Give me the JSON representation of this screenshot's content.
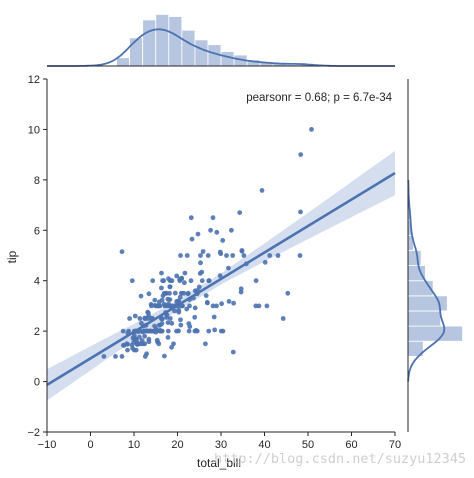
{
  "chart_data": {
    "type": "scatter",
    "xlabel": "total_bill",
    "ylabel": "tip",
    "xlim": [
      -10,
      70
    ],
    "ylim": [
      -2,
      12
    ],
    "xticks": [
      "−10",
      "0",
      "10",
      "20",
      "30",
      "40",
      "50",
      "60",
      "70"
    ],
    "xtick_values": [
      -10,
      0,
      10,
      20,
      30,
      40,
      50,
      60,
      70
    ],
    "yticks": [
      "−2",
      "0",
      "2",
      "4",
      "6",
      "8",
      "10",
      "12"
    ],
    "ytick_values": [
      -2,
      0,
      2,
      4,
      6,
      8,
      10,
      12
    ],
    "annotation": "pearsonr = 0.68; p = 6.7e-34",
    "grid": false,
    "color": "#4c72b0",
    "ci_color": "#c6d3ea",
    "hist_color": "#a9bcdc",
    "regression": {
      "slope": 0.105,
      "intercept": 0.92,
      "ci_x": [
        -10,
        0,
        10,
        20,
        30,
        40,
        50,
        60,
        70
      ],
      "ci_halfwidth": [
        0.62,
        0.48,
        0.32,
        0.2,
        0.22,
        0.36,
        0.52,
        0.7,
        0.88
      ]
    },
    "scatter": [
      [
        16.99,
        1.01
      ],
      [
        10.34,
        1.66
      ],
      [
        21.01,
        3.5
      ],
      [
        23.68,
        3.31
      ],
      [
        24.59,
        3.61
      ],
      [
        25.29,
        4.71
      ],
      [
        8.77,
        2.0
      ],
      [
        26.88,
        3.12
      ],
      [
        15.04,
        1.96
      ],
      [
        14.78,
        3.23
      ],
      [
        10.27,
        1.71
      ],
      [
        35.26,
        5.0
      ],
      [
        15.42,
        1.57
      ],
      [
        18.43,
        3.0
      ],
      [
        14.83,
        3.02
      ],
      [
        21.58,
        3.92
      ],
      [
        10.33,
        1.67
      ],
      [
        16.29,
        3.71
      ],
      [
        16.97,
        3.5
      ],
      [
        20.65,
        3.35
      ],
      [
        17.92,
        4.08
      ],
      [
        20.29,
        2.75
      ],
      [
        15.77,
        2.23
      ],
      [
        39.42,
        7.58
      ],
      [
        19.82,
        3.18
      ],
      [
        17.81,
        2.34
      ],
      [
        13.37,
        2.0
      ],
      [
        12.69,
        2.0
      ],
      [
        21.7,
        4.3
      ],
      [
        19.65,
        3.0
      ],
      [
        9.55,
        1.45
      ],
      [
        18.35,
        2.5
      ],
      [
        15.06,
        3.0
      ],
      [
        20.69,
        2.45
      ],
      [
        17.78,
        3.27
      ],
      [
        24.06,
        3.6
      ],
      [
        16.31,
        2.0
      ],
      [
        16.93,
        3.07
      ],
      [
        18.69,
        2.31
      ],
      [
        31.27,
        5.0
      ],
      [
        16.04,
        2.24
      ],
      [
        17.46,
        2.54
      ],
      [
        13.94,
        3.06
      ],
      [
        9.68,
        1.32
      ],
      [
        30.4,
        5.6
      ],
      [
        18.29,
        3.0
      ],
      [
        22.23,
        5.0
      ],
      [
        32.4,
        6.0
      ],
      [
        28.55,
        2.05
      ],
      [
        18.04,
        3.0
      ],
      [
        12.54,
        2.5
      ],
      [
        10.29,
        2.6
      ],
      [
        34.81,
        5.2
      ],
      [
        9.94,
        1.56
      ],
      [
        25.56,
        4.34
      ],
      [
        19.49,
        3.51
      ],
      [
        38.01,
        3.0
      ],
      [
        26.41,
        1.5
      ],
      [
        11.24,
        1.76
      ],
      [
        48.27,
        6.73
      ],
      [
        20.29,
        3.21
      ],
      [
        13.81,
        2.0
      ],
      [
        11.02,
        1.98
      ],
      [
        18.29,
        3.76
      ],
      [
        17.59,
        2.64
      ],
      [
        20.08,
        3.15
      ],
      [
        16.45,
        2.47
      ],
      [
        3.07,
        1.0
      ],
      [
        20.23,
        2.01
      ],
      [
        15.01,
        2.09
      ],
      [
        12.02,
        1.97
      ],
      [
        17.07,
        3.0
      ],
      [
        26.86,
        3.14
      ],
      [
        25.28,
        5.0
      ],
      [
        14.73,
        2.2
      ],
      [
        10.51,
        1.25
      ],
      [
        17.92,
        3.08
      ],
      [
        27.2,
        4.0
      ],
      [
        22.76,
        3.0
      ],
      [
        17.29,
        2.71
      ],
      [
        19.44,
        3.0
      ],
      [
        16.66,
        3.4
      ],
      [
        10.07,
        1.83
      ],
      [
        32.68,
        5.0
      ],
      [
        15.98,
        2.03
      ],
      [
        34.83,
        5.17
      ],
      [
        13.03,
        2.0
      ],
      [
        18.28,
        4.0
      ],
      [
        24.71,
        5.85
      ],
      [
        21.16,
        3.0
      ],
      [
        28.97,
        3.0
      ],
      [
        22.49,
        3.5
      ],
      [
        5.75,
        1.0
      ],
      [
        16.32,
        4.3
      ],
      [
        22.75,
        3.25
      ],
      [
        40.17,
        4.73
      ],
      [
        27.28,
        4.0
      ],
      [
        12.03,
        1.5
      ],
      [
        21.01,
        3.0
      ],
      [
        12.46,
        1.5
      ],
      [
        11.35,
        2.5
      ],
      [
        15.38,
        3.0
      ],
      [
        44.3,
        2.5
      ],
      [
        22.42,
        3.48
      ],
      [
        20.92,
        4.08
      ],
      [
        15.36,
        1.64
      ],
      [
        20.49,
        4.06
      ],
      [
        25.21,
        4.29
      ],
      [
        18.24,
        3.76
      ],
      [
        14.31,
        4.0
      ],
      [
        14.0,
        3.0
      ],
      [
        7.25,
        1.0
      ],
      [
        38.07,
        4.0
      ],
      [
        23.95,
        2.55
      ],
      [
        25.71,
        4.0
      ],
      [
        17.31,
        3.5
      ],
      [
        29.93,
        5.07
      ],
      [
        10.65,
        1.5
      ],
      [
        12.43,
        1.8
      ],
      [
        24.08,
        2.92
      ],
      [
        11.69,
        2.31
      ],
      [
        13.42,
        1.68
      ],
      [
        14.26,
        2.5
      ],
      [
        15.95,
        2.0
      ],
      [
        12.48,
        2.52
      ],
      [
        29.8,
        4.2
      ],
      [
        8.52,
        1.48
      ],
      [
        14.52,
        2.0
      ],
      [
        11.38,
        2.0
      ],
      [
        22.82,
        2.18
      ],
      [
        19.08,
        1.5
      ],
      [
        20.27,
        2.83
      ],
      [
        11.17,
        1.5
      ],
      [
        12.26,
        2.0
      ],
      [
        18.26,
        3.25
      ],
      [
        8.51,
        1.25
      ],
      [
        10.33,
        2.0
      ],
      [
        14.15,
        2.0
      ],
      [
        16.0,
        2.0
      ],
      [
        13.16,
        2.75
      ],
      [
        17.47,
        3.5
      ],
      [
        34.3,
        6.7
      ],
      [
        41.19,
        5.0
      ],
      [
        27.05,
        5.0
      ],
      [
        16.43,
        2.3
      ],
      [
        8.35,
        1.5
      ],
      [
        18.64,
        1.36
      ],
      [
        11.87,
        1.63
      ],
      [
        9.78,
        1.73
      ],
      [
        7.51,
        2.0
      ],
      [
        14.07,
        2.5
      ],
      [
        13.13,
        2.0
      ],
      [
        17.26,
        2.74
      ],
      [
        24.55,
        2.0
      ],
      [
        19.77,
        2.0
      ],
      [
        29.85,
        5.14
      ],
      [
        48.17,
        5.0
      ],
      [
        25.0,
        3.75
      ],
      [
        13.39,
        2.61
      ],
      [
        16.49,
        2.0
      ],
      [
        21.5,
        3.5
      ],
      [
        12.66,
        2.5
      ],
      [
        16.21,
        2.0
      ],
      [
        13.81,
        2.0
      ],
      [
        17.51,
        3.0
      ],
      [
        24.52,
        3.48
      ],
      [
        20.76,
        2.24
      ],
      [
        31.71,
        4.5
      ],
      [
        10.59,
        1.61
      ],
      [
        10.63,
        2.0
      ],
      [
        50.81,
        10.0
      ],
      [
        15.81,
        3.16
      ],
      [
        7.25,
        5.15
      ],
      [
        31.85,
        3.18
      ],
      [
        16.82,
        4.0
      ],
      [
        32.9,
        3.11
      ],
      [
        17.89,
        2.0
      ],
      [
        14.48,
        2.0
      ],
      [
        9.6,
        4.0
      ],
      [
        34.63,
        3.55
      ],
      [
        34.65,
        3.68
      ],
      [
        23.33,
        5.65
      ],
      [
        45.35,
        3.5
      ],
      [
        23.17,
        6.5
      ],
      [
        40.55,
        3.0
      ],
      [
        20.69,
        5.0
      ],
      [
        20.9,
        3.5
      ],
      [
        30.46,
        2.0
      ],
      [
        18.15,
        3.5
      ],
      [
        23.1,
        4.0
      ],
      [
        15.69,
        1.5
      ],
      [
        19.81,
        4.19
      ],
      [
        28.44,
        2.56
      ],
      [
        15.48,
        2.02
      ],
      [
        16.58,
        4.0
      ],
      [
        7.56,
        1.44
      ],
      [
        10.34,
        2.0
      ],
      [
        43.11,
        5.0
      ],
      [
        13.0,
        2.0
      ],
      [
        13.51,
        2.0
      ],
      [
        18.71,
        4.0
      ],
      [
        12.74,
        2.01
      ],
      [
        13.0,
        2.0
      ],
      [
        16.4,
        2.5
      ],
      [
        20.53,
        4.0
      ],
      [
        16.47,
        3.23
      ],
      [
        26.59,
        3.41
      ],
      [
        38.73,
        3.0
      ],
      [
        24.27,
        2.03
      ],
      [
        12.76,
        2.23
      ],
      [
        30.06,
        2.0
      ],
      [
        25.89,
        5.16
      ],
      [
        48.33,
        9.0
      ],
      [
        13.27,
        2.5
      ],
      [
        28.17,
        6.5
      ],
      [
        12.9,
        1.1
      ],
      [
        28.15,
        3.0
      ],
      [
        11.59,
        1.5
      ],
      [
        7.74,
        1.44
      ],
      [
        30.14,
        3.09
      ],
      [
        12.16,
        2.2
      ],
      [
        13.42,
        3.48
      ],
      [
        8.58,
        1.92
      ],
      [
        15.98,
        3.0
      ],
      [
        13.42,
        1.58
      ],
      [
        16.27,
        2.5
      ],
      [
        10.09,
        2.0
      ],
      [
        20.45,
        3.0
      ],
      [
        13.28,
        2.72
      ],
      [
        22.12,
        2.88
      ],
      [
        24.01,
        2.0
      ],
      [
        15.69,
        3.0
      ],
      [
        11.61,
        3.39
      ],
      [
        10.77,
        1.47
      ],
      [
        15.53,
        3.0
      ],
      [
        10.07,
        1.25
      ],
      [
        12.6,
        1.0
      ],
      [
        32.83,
        1.17
      ],
      [
        35.83,
        4.67
      ],
      [
        29.03,
        5.92
      ],
      [
        27.18,
        2.0
      ],
      [
        22.67,
        2.0
      ],
      [
        17.82,
        1.75
      ],
      [
        18.78,
        3.0
      ],
      [
        14.0,
        2.0
      ],
      [
        9.0,
        2.5
      ],
      [
        21.0,
        4.1
      ],
      [
        22.6,
        2.3
      ],
      [
        27.6,
        6.0
      ],
      [
        19.3,
        2.8
      ]
    ],
    "x_hist": {
      "edges": [
        6,
        9,
        12,
        15,
        18,
        21,
        24,
        27,
        30,
        33,
        36,
        39,
        42,
        45,
        48,
        51
      ],
      "density": [
        0.012,
        0.041,
        0.067,
        0.075,
        0.072,
        0.052,
        0.038,
        0.031,
        0.021,
        0.016,
        0.009,
        0.006,
        0.004,
        0.002,
        0.003
      ]
    },
    "y_hist": {
      "edges": [
        1.0,
        1.6,
        2.2,
        2.8,
        3.4,
        4.0,
        4.6,
        5.2,
        5.8,
        6.4,
        7.0
      ],
      "density": [
        0.14,
        0.5,
        0.3,
        0.36,
        0.23,
        0.16,
        0.12,
        0.05,
        0.03,
        0.02
      ]
    }
  },
  "watermark": "http://blog.csdn.net/suzyu12345"
}
